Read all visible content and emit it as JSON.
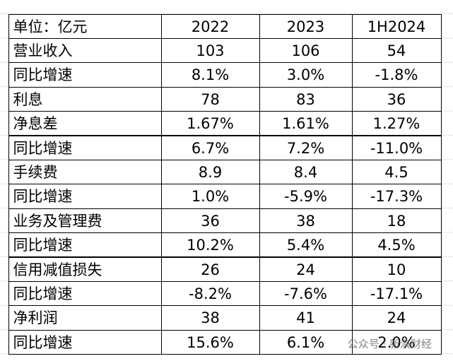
{
  "table": {
    "header": [
      "单位：亿元",
      "2022",
      "2023",
      "1H2024"
    ],
    "rows": [
      [
        "营业收入",
        "103",
        "106",
        "54"
      ],
      [
        "同比增速",
        "8.1%",
        "3.0%",
        "-1.8%"
      ],
      [
        "利息",
        "78",
        "83",
        "36"
      ],
      [
        "净息差",
        "1.67%",
        "1.61%",
        "1.27%"
      ],
      [
        "同比增速",
        "6.7%",
        "7.2%",
        "-11.0%"
      ],
      [
        "手续费",
        "8.9",
        "8.4",
        "4.5"
      ],
      [
        "同比增速",
        "1.0%",
        "-5.9%",
        "-17.3%"
      ],
      [
        "业务及管理费",
        "36",
        "38",
        "18"
      ],
      [
        "同比增速",
        "10.2%",
        "5.4%",
        "4.5%"
      ],
      [
        "信用减值损失",
        "26",
        "24",
        "10"
      ],
      [
        "同比增速",
        "-8.2%",
        "-7.6%",
        "-17.1%"
      ],
      [
        "净利润",
        "38",
        "41",
        "24"
      ],
      [
        "同比增速",
        "15.6%",
        "6.1%",
        "2.0%"
      ]
    ]
  },
  "watermark": "公众号 · 新浪财经"
}
